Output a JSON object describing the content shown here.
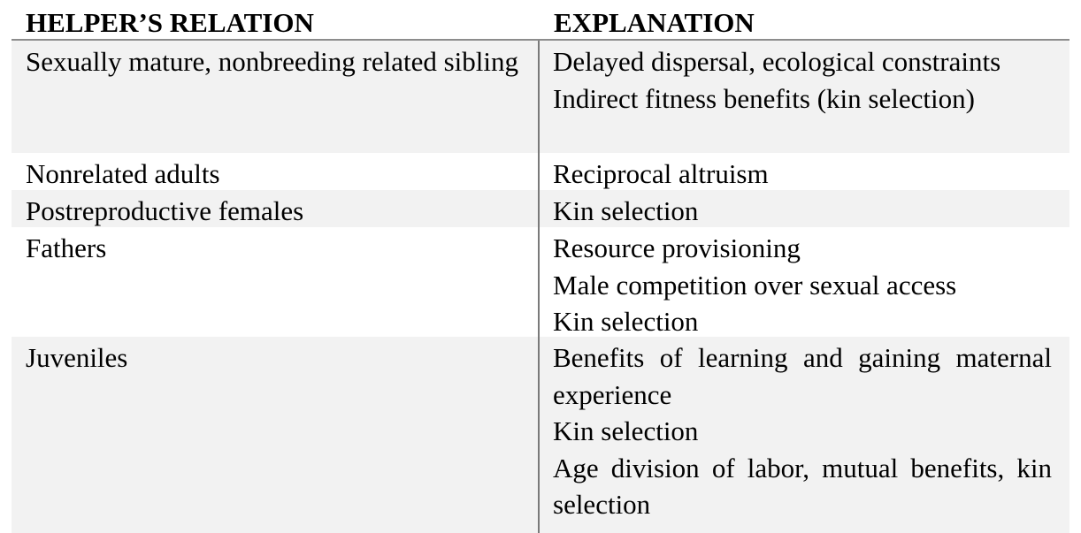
{
  "table": {
    "headers": {
      "relation": "HELPER’S RELATION",
      "explanation": "EXPLANATION"
    },
    "rows": [
      {
        "relation": "Sexually mature, nonbreeding related sibling",
        "explanations": [
          "Delayed dispersal, ecological constraints",
          "Indirect fitness benefits (kin selection)"
        ],
        "shaded": true
      },
      {
        "relation": "Nonrelated adults",
        "explanations": [
          "Reciprocal altruism"
        ],
        "shaded": false
      },
      {
        "relation": "Postreproductive females",
        "explanations": [
          "Kin selection"
        ],
        "shaded": true
      },
      {
        "relation": "Fathers",
        "explanations": [
          "Resource provisioning",
          "Male competition over sexual access",
          "Kin selection"
        ],
        "shaded": false
      },
      {
        "relation": "Juveniles",
        "explanations": [
          "Benefits of learning and gaining maternal experience",
          "Kin selection",
          "Age division of labor, mutual benefits, kin selection"
        ],
        "shaded": true
      }
    ]
  }
}
